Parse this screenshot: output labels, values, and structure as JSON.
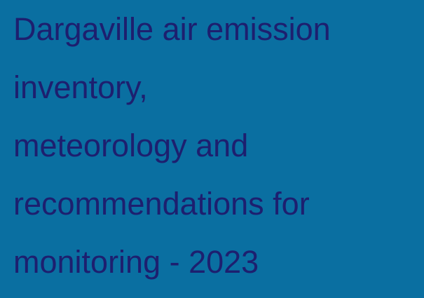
{
  "header": {
    "title_lines": [
      "Dargaville air emission",
      "inventory,",
      "meteorology and",
      "recommendations for",
      "monitoring - 2023"
    ]
  }
}
